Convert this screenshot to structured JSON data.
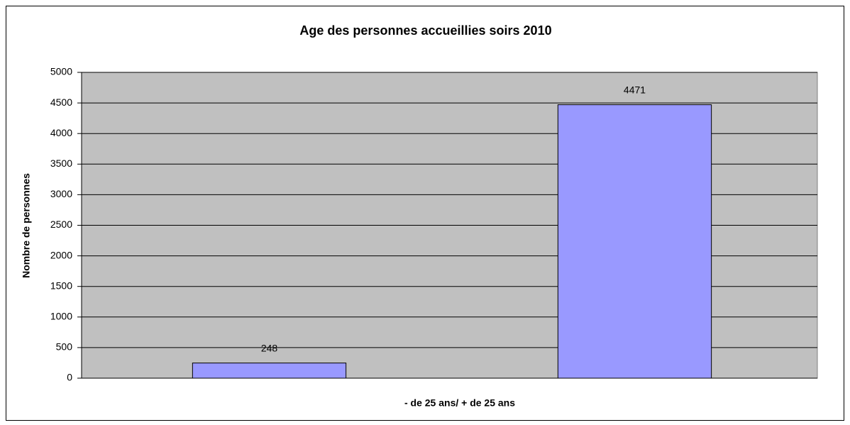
{
  "chart_data": {
    "type": "bar",
    "title": "Age des personnes accueillies soirs 2010",
    "xlabel": "- de 25 ans/ + de 25 ans",
    "ylabel": "Nombre de personnes",
    "categories": [
      null,
      null
    ],
    "values": [
      248,
      4471
    ],
    "color": "#9999ff",
    "ylim": [
      0,
      5000
    ],
    "yticks": [
      0,
      500,
      1000,
      1500,
      2000,
      2500,
      3000,
      3500,
      4000,
      4500,
      5000
    ],
    "grid": true
  }
}
